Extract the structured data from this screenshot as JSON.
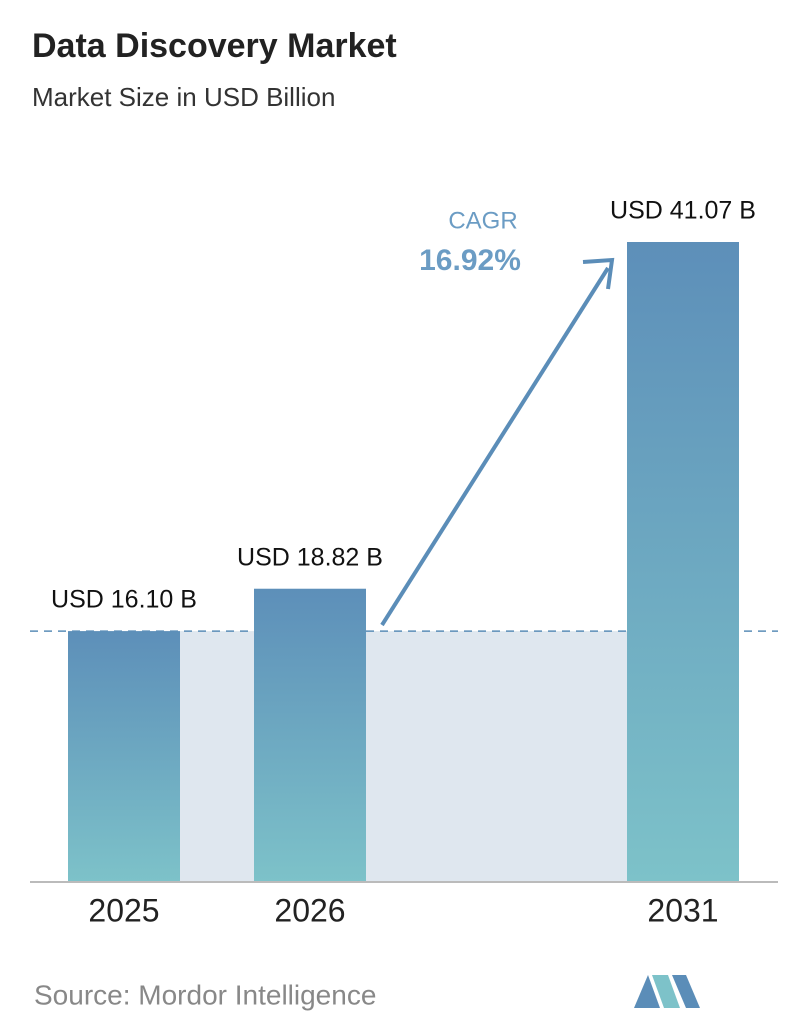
{
  "chart_data": {
    "type": "bar",
    "title": "Data Discovery Market",
    "subtitle": "Market Size in USD Billion",
    "categories": [
      "2025",
      "2026",
      "2031"
    ],
    "values": [
      16.1,
      18.82,
      41.07
    ],
    "value_labels": [
      "USD 16.10 B",
      "USD 18.82 B",
      "USD 41.07 B"
    ],
    "annotation": {
      "label": "CAGR",
      "value": "16.92%"
    },
    "source": "Source:  Mordor Intelligence"
  }
}
